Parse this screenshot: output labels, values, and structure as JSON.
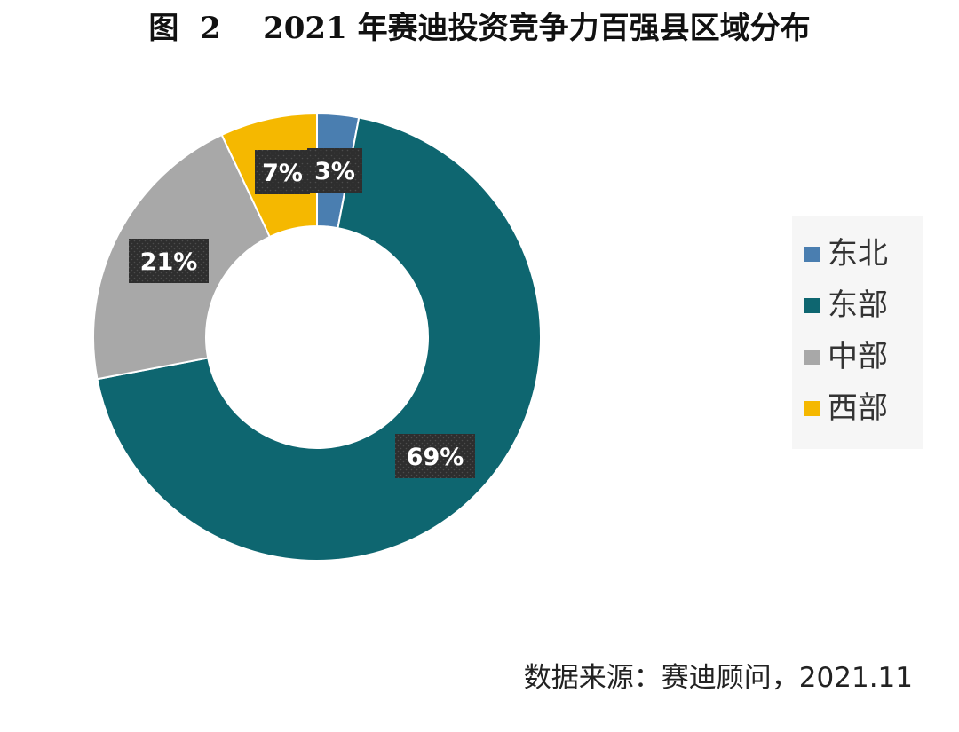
{
  "chart_data": {
    "type": "pie",
    "title": "图  2    2021 年赛迪投资竞争力百强县区域分布",
    "categories": [
      "东北",
      "东部",
      "中部",
      "西部"
    ],
    "values": [
      3,
      69,
      21,
      7
    ],
    "data_labels": [
      "3%",
      "69%",
      "21%",
      "7%"
    ],
    "colors": [
      "#4a7eb0",
      "#0e6670",
      "#a8a8a8",
      "#f5b800"
    ],
    "donut": true,
    "legend_position": "right"
  },
  "source": "数据来源：赛迪顾问，2021.11"
}
